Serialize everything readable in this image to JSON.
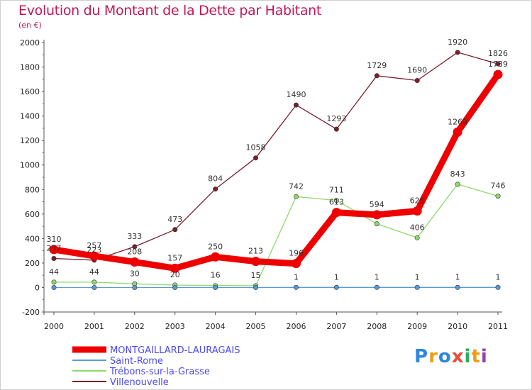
{
  "chart_data": {
    "type": "line",
    "title": "Evolution du Montant de la Dette par Habitant",
    "subtitle": "(en €)",
    "x": [
      "2000",
      "2001",
      "2002",
      "2003",
      "2004",
      "2005",
      "2006",
      "2007",
      "2008",
      "2009",
      "2010",
      "2011"
    ],
    "ylim": [
      -200,
      2000
    ],
    "yticks": [
      -200,
      0,
      200,
      400,
      600,
      800,
      1000,
      1200,
      1400,
      1600,
      1800,
      2000
    ],
    "grid": false,
    "legend_position": "bottom-left",
    "series": [
      {
        "name": "MONTGAILLARD-LAURAGAIS",
        "color": "#ee0000",
        "values": [
          310,
          257,
          208,
          157,
          250,
          213,
          196,
          613,
          594,
          625,
          1269,
          1739
        ],
        "labels": [
          "310",
          "257",
          "208",
          "157",
          "250",
          "213",
          "196",
          "613",
          "594",
          "625",
          "1269",
          "1739"
        ]
      },
      {
        "name": "Saint-Rome",
        "color": "#5b9bd5",
        "values": [
          0,
          0,
          0,
          0,
          0,
          0,
          1,
          1,
          1,
          1,
          1,
          1
        ],
        "labels": [
          "",
          "",
          "",
          "",
          "",
          "",
          "1",
          "1",
          "1",
          "1",
          "1",
          "1"
        ]
      },
      {
        "name": "Trébons-sur-la-Grasse",
        "color": "#8fd96b",
        "values": [
          44,
          44,
          30,
          20,
          16,
          15,
          742,
          711,
          520,
          406,
          843,
          746
        ],
        "labels": [
          "44",
          "44",
          "30",
          "20",
          "16",
          "15",
          "742",
          "711",
          "",
          "406",
          "843",
          "746"
        ]
      },
      {
        "name": "Villenouvelle",
        "color": "#7a1f2b",
        "values": [
          237,
          223,
          333,
          473,
          804,
          1058,
          1490,
          1293,
          1729,
          1690,
          1920,
          1826
        ],
        "labels": [
          "237",
          "223",
          "333",
          "473",
          "804",
          "1058",
          "1490",
          "1293",
          "1729",
          "1690",
          "1920",
          "1826"
        ]
      }
    ]
  },
  "branding": {
    "logo_text": "Proxiti"
  }
}
